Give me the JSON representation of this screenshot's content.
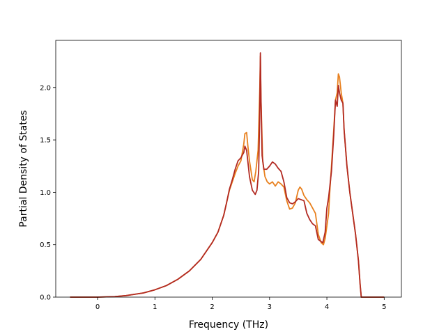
{
  "chart_data": {
    "type": "line",
    "xlabel": "Frequency (THz)",
    "ylabel": "Partial Density of States",
    "xlim": [
      -0.73,
      5.3
    ],
    "ylim": [
      0.0,
      2.45
    ],
    "x_ticks": [
      0,
      1,
      2,
      3,
      4,
      5
    ],
    "y_ticks": [
      0.0,
      0.5,
      1.0,
      1.5,
      2.0
    ],
    "x_tick_labels": [
      "0",
      "1",
      "2",
      "3",
      "4",
      "5"
    ],
    "y_tick_labels": [
      "0.0",
      "0.5",
      "1.0",
      "1.5",
      "2.0"
    ],
    "grid": false,
    "legend": "none",
    "series": [
      {
        "color": "#e8801e",
        "points": [
          [
            -0.48,
            0.0
          ],
          [
            0.0,
            0.0
          ],
          [
            0.3,
            0.005
          ],
          [
            0.5,
            0.015
          ],
          [
            0.8,
            0.04
          ],
          [
            1.0,
            0.07
          ],
          [
            1.2,
            0.11
          ],
          [
            1.4,
            0.17
          ],
          [
            1.6,
            0.25
          ],
          [
            1.8,
            0.36
          ],
          [
            2.0,
            0.52
          ],
          [
            2.1,
            0.62
          ],
          [
            2.2,
            0.78
          ],
          [
            2.25,
            0.9
          ],
          [
            2.3,
            1.02
          ],
          [
            2.35,
            1.1
          ],
          [
            2.4,
            1.18
          ],
          [
            2.45,
            1.25
          ],
          [
            2.5,
            1.3
          ],
          [
            2.55,
            1.46
          ],
          [
            2.57,
            1.56
          ],
          [
            2.6,
            1.57
          ],
          [
            2.62,
            1.45
          ],
          [
            2.65,
            1.3
          ],
          [
            2.7,
            1.12
          ],
          [
            2.73,
            1.1
          ],
          [
            2.76,
            1.2
          ],
          [
            2.8,
            1.4
          ],
          [
            2.83,
            2.0
          ],
          [
            2.84,
            2.3
          ],
          [
            2.85,
            1.9
          ],
          [
            2.88,
            1.3
          ],
          [
            2.92,
            1.15
          ],
          [
            2.96,
            1.1
          ],
          [
            3.0,
            1.08
          ],
          [
            3.05,
            1.1
          ],
          [
            3.1,
            1.06
          ],
          [
            3.15,
            1.1
          ],
          [
            3.2,
            1.08
          ],
          [
            3.25,
            1.05
          ],
          [
            3.3,
            0.92
          ],
          [
            3.35,
            0.84
          ],
          [
            3.4,
            0.85
          ],
          [
            3.45,
            0.9
          ],
          [
            3.5,
            1.02
          ],
          [
            3.53,
            1.05
          ],
          [
            3.56,
            1.03
          ],
          [
            3.6,
            0.97
          ],
          [
            3.65,
            0.93
          ],
          [
            3.7,
            0.9
          ],
          [
            3.75,
            0.85
          ],
          [
            3.8,
            0.8
          ],
          [
            3.85,
            0.6
          ],
          [
            3.9,
            0.52
          ],
          [
            3.94,
            0.5
          ],
          [
            3.97,
            0.56
          ],
          [
            4.0,
            0.68
          ],
          [
            4.03,
            0.8
          ],
          [
            4.05,
            1.0
          ],
          [
            4.08,
            1.25
          ],
          [
            4.12,
            1.6
          ],
          [
            4.15,
            1.88
          ],
          [
            4.18,
            1.95
          ],
          [
            4.2,
            2.13
          ],
          [
            4.22,
            2.1
          ],
          [
            4.25,
            1.95
          ],
          [
            4.28,
            1.85
          ],
          [
            4.3,
            1.6
          ],
          [
            4.35,
            1.25
          ],
          [
            4.4,
            1.0
          ],
          [
            4.45,
            0.8
          ],
          [
            4.5,
            0.6
          ],
          [
            4.55,
            0.35
          ],
          [
            4.58,
            0.12
          ],
          [
            4.6,
            0.0
          ],
          [
            5.0,
            0.0
          ]
        ]
      },
      {
        "color": "#b22a22",
        "points": [
          [
            -0.48,
            0.0
          ],
          [
            0.0,
            0.0
          ],
          [
            0.3,
            0.005
          ],
          [
            0.5,
            0.015
          ],
          [
            0.8,
            0.04
          ],
          [
            1.0,
            0.07
          ],
          [
            1.2,
            0.11
          ],
          [
            1.4,
            0.17
          ],
          [
            1.6,
            0.25
          ],
          [
            1.8,
            0.36
          ],
          [
            2.0,
            0.52
          ],
          [
            2.1,
            0.62
          ],
          [
            2.2,
            0.78
          ],
          [
            2.25,
            0.9
          ],
          [
            2.3,
            1.03
          ],
          [
            2.35,
            1.12
          ],
          [
            2.4,
            1.22
          ],
          [
            2.45,
            1.3
          ],
          [
            2.5,
            1.33
          ],
          [
            2.55,
            1.38
          ],
          [
            2.57,
            1.44
          ],
          [
            2.6,
            1.4
          ],
          [
            2.62,
            1.3
          ],
          [
            2.65,
            1.15
          ],
          [
            2.7,
            1.02
          ],
          [
            2.75,
            0.98
          ],
          [
            2.78,
            1.02
          ],
          [
            2.81,
            1.2
          ],
          [
            2.83,
            1.8
          ],
          [
            2.84,
            2.33
          ],
          [
            2.85,
            1.9
          ],
          [
            2.87,
            1.35
          ],
          [
            2.9,
            1.22
          ],
          [
            2.95,
            1.22
          ],
          [
            3.0,
            1.25
          ],
          [
            3.05,
            1.29
          ],
          [
            3.1,
            1.27
          ],
          [
            3.15,
            1.23
          ],
          [
            3.2,
            1.2
          ],
          [
            3.25,
            1.1
          ],
          [
            3.3,
            0.95
          ],
          [
            3.35,
            0.9
          ],
          [
            3.4,
            0.89
          ],
          [
            3.45,
            0.91
          ],
          [
            3.5,
            0.94
          ],
          [
            3.55,
            0.93
          ],
          [
            3.6,
            0.92
          ],
          [
            3.65,
            0.8
          ],
          [
            3.7,
            0.74
          ],
          [
            3.75,
            0.7
          ],
          [
            3.8,
            0.68
          ],
          [
            3.85,
            0.55
          ],
          [
            3.9,
            0.53
          ],
          [
            3.93,
            0.52
          ],
          [
            3.97,
            0.62
          ],
          [
            4.0,
            0.85
          ],
          [
            4.03,
            0.95
          ],
          [
            4.06,
            1.1
          ],
          [
            4.08,
            1.2
          ],
          [
            4.12,
            1.55
          ],
          [
            4.15,
            1.88
          ],
          [
            4.18,
            1.82
          ],
          [
            4.2,
            2.02
          ],
          [
            4.22,
            1.95
          ],
          [
            4.25,
            1.88
          ],
          [
            4.28,
            1.85
          ],
          [
            4.3,
            1.6
          ],
          [
            4.35,
            1.25
          ],
          [
            4.4,
            1.0
          ],
          [
            4.45,
            0.8
          ],
          [
            4.5,
            0.6
          ],
          [
            4.55,
            0.35
          ],
          [
            4.58,
            0.12
          ],
          [
            4.6,
            0.0
          ],
          [
            5.0,
            0.0
          ]
        ]
      }
    ]
  }
}
